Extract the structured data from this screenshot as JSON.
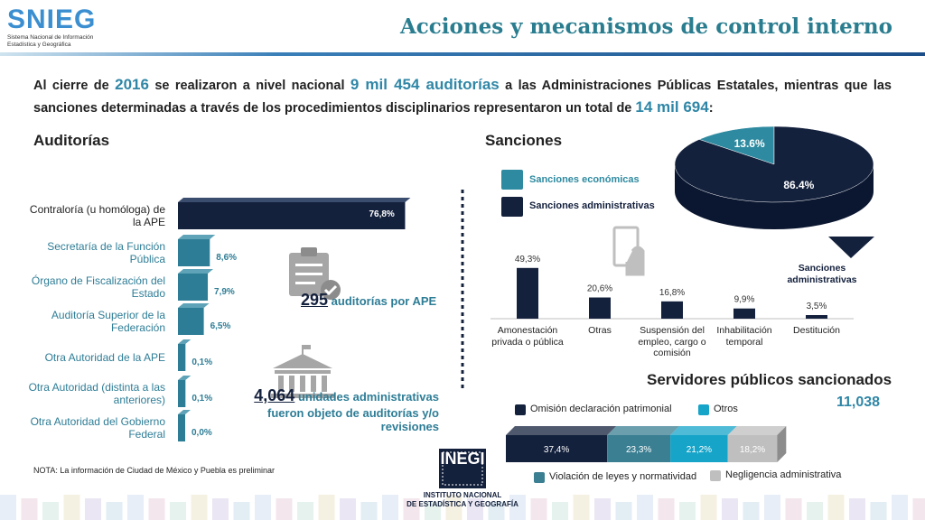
{
  "header": {
    "title": "Acciones y mecanismos de control interno",
    "logo": "SNIEG",
    "logo_subtitle": [
      "Sistema Nacional de Información",
      "Estadística y Geográfica"
    ]
  },
  "intro": [
    {
      "text": "Al cierre de ",
      "emphasis": false
    },
    {
      "text": "2016",
      "emphasis": true
    },
    {
      "text": " se realizaron a nivel nacional ",
      "emphasis": false
    },
    {
      "text": "9 mil 454 auditorías",
      "emphasis": true
    },
    {
      "text": " a las Administraciones Públicas Estatales, mientras que las sanciones determinadas a través de los procedimientos disciplinarios representaron un total de ",
      "emphasis": false
    },
    {
      "text": "14 mil 694",
      "emphasis": true
    },
    {
      "text": ":",
      "emphasis": false
    }
  ],
  "auditorias": {
    "title": "Auditorías",
    "type": "bar",
    "categories": [
      "Contraloría (u homóloga) de la APE",
      "Secretaría de la Función Pública",
      "Órgano de Fiscalización del Estado",
      "Auditoría Superior de la Federación",
      "Otra Autoridad de la APE",
      "Otra Autoridad (distinta a las anteriores)",
      "Otra Autoridad del Gobierno Federal"
    ],
    "values": [
      76.8,
      8.6,
      7.9,
      6.5,
      0.1,
      0.1,
      0.0
    ],
    "value_labels": [
      "76,8%",
      "8,6%",
      "7,9%",
      "6,5%",
      "0,1%",
      "0,1%",
      "0,0%"
    ],
    "colors": [
      "#14213d",
      "#2e7d96",
      "#2e7d96",
      "#2e7d96",
      "#2e7d96",
      "#2e7d96",
      "#2e7d96"
    ]
  },
  "stats": [
    {
      "number": "295",
      "text": "auditorías por APE"
    },
    {
      "number": "4,064",
      "text": "unidades administrativas fueron objeto de auditorías y/o revisiones"
    }
  ],
  "sanciones": {
    "title": "Sanciones",
    "pie": {
      "type": "pie",
      "categories": [
        "Sanciones económicas",
        "Sanciones administrativas"
      ],
      "values": [
        13.6,
        86.4
      ],
      "value_labels": [
        "13.6%",
        "86.4%"
      ],
      "colors": [
        "#2e8aa0",
        "#14213d"
      ]
    },
    "bars": {
      "type": "bar",
      "annotation": "Sanciones administrativas",
      "categories": [
        "Amonestación privada o pública",
        "Otras",
        "Suspensión del empleo, cargo o comisión",
        "Inhabilitación temporal",
        "Destitución"
      ],
      "values": [
        49.3,
        20.6,
        16.8,
        9.9,
        3.5
      ],
      "value_labels": [
        "49,3%",
        "20,6%",
        "16,8%",
        "9,9%",
        "3,5%"
      ],
      "color": "#14213d"
    }
  },
  "servidores": {
    "title": "Servidores públicos sancionados",
    "total": "11,038",
    "type": "stacked-bar",
    "series": [
      {
        "name": "Omisión declaración patrimonial",
        "color": "#14213d",
        "values": [
          37.4
        ],
        "value_labels": [
          "37,4%"
        ]
      },
      {
        "name": "Violación de leyes y normatividad",
        "color": "#3b7f92",
        "values": [
          23.3
        ],
        "value_labels": [
          "23,3%"
        ]
      },
      {
        "name": "Otros",
        "color": "#16a4c9",
        "values": [
          21.2
        ],
        "value_labels": [
          "21,2%"
        ]
      },
      {
        "name": "Negligencia administrativa",
        "color": "#bfbfbf",
        "values": [
          18.2
        ],
        "value_labels": [
          "18,2%"
        ]
      }
    ]
  },
  "note": "NOTA: La información de Ciudad de México y Puebla es preliminar",
  "footer": {
    "logo": "INEGI",
    "name": [
      "INSTITUTO NACIONAL",
      "DE ESTADÍSTICA Y GEOGRAFÍA"
    ]
  }
}
